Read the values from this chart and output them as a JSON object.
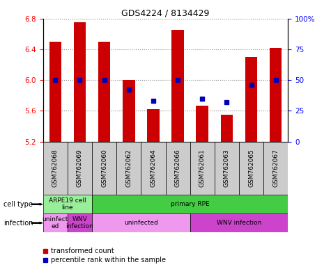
{
  "title": "GDS4224 / 8134429",
  "samples": [
    "GSM762068",
    "GSM762069",
    "GSM762060",
    "GSM762062",
    "GSM762064",
    "GSM762066",
    "GSM762061",
    "GSM762063",
    "GSM762065",
    "GSM762067"
  ],
  "transformed_counts": [
    6.5,
    6.75,
    6.5,
    6.0,
    5.62,
    6.65,
    5.67,
    5.55,
    6.3,
    6.42
  ],
  "percentile_ranks": [
    50,
    50,
    50,
    42,
    33,
    50,
    35,
    32,
    46,
    50
  ],
  "ylim_left": [
    5.2,
    6.8
  ],
  "ylim_right": [
    0,
    100
  ],
  "yticks_left": [
    5.2,
    5.6,
    6.0,
    6.4,
    6.8
  ],
  "yticks_right": [
    0,
    25,
    50,
    75,
    100
  ],
  "ytick_labels_right": [
    "0",
    "25",
    "50",
    "75",
    "100%"
  ],
  "bar_color": "#cc0000",
  "dot_color": "#0000bb",
  "bar_bottom": 5.2,
  "bar_width": 0.5,
  "grid_color": "#888888",
  "sample_bg_color": "#cccccc",
  "cell_type_data": [
    {
      "label": "ARPE19 cell\nline",
      "start": 0,
      "end": 2,
      "color": "#99ee99"
    },
    {
      "label": "primary RPE",
      "start": 2,
      "end": 10,
      "color": "#44cc44"
    }
  ],
  "infection_data": [
    {
      "label": "uninfect\ned",
      "start": 0,
      "end": 1,
      "color": "#ee99ee"
    },
    {
      "label": "WNV\ninfection",
      "start": 1,
      "end": 2,
      "color": "#cc44cc"
    },
    {
      "label": "uninfected",
      "start": 2,
      "end": 6,
      "color": "#ee99ee"
    },
    {
      "label": "WNV infection",
      "start": 6,
      "end": 10,
      "color": "#cc44cc"
    }
  ],
  "legend_items": [
    {
      "label": "transformed count",
      "color": "#cc0000"
    },
    {
      "label": "percentile rank within the sample",
      "color": "#0000bb"
    }
  ]
}
